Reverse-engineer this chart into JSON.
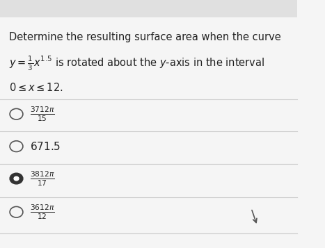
{
  "background_color": "#f5f5f5",
  "question_line1": "Determine the resulting surface area when the curve",
  "question_line2": "$y = \\frac{1}{3}x^{1.5}$ is rotated about the $y$-axis in the interval",
  "question_line3": "$0 \\leq x \\leq 12.$",
  "options": [
    {
      "label": "$\\frac{3712\\pi}{15}$",
      "selected": false
    },
    {
      "label": "$671.5$",
      "selected": false
    },
    {
      "label": "$\\frac{3812\\pi}{17}$",
      "selected": true
    },
    {
      "label": "$\\frac{3612\\pi}{12}$",
      "selected": false
    }
  ],
  "divider_color": "#cccccc",
  "radio_color": "#555555",
  "selected_color": "#333333",
  "text_color": "#222222",
  "header_bg": "#e0e0e0"
}
